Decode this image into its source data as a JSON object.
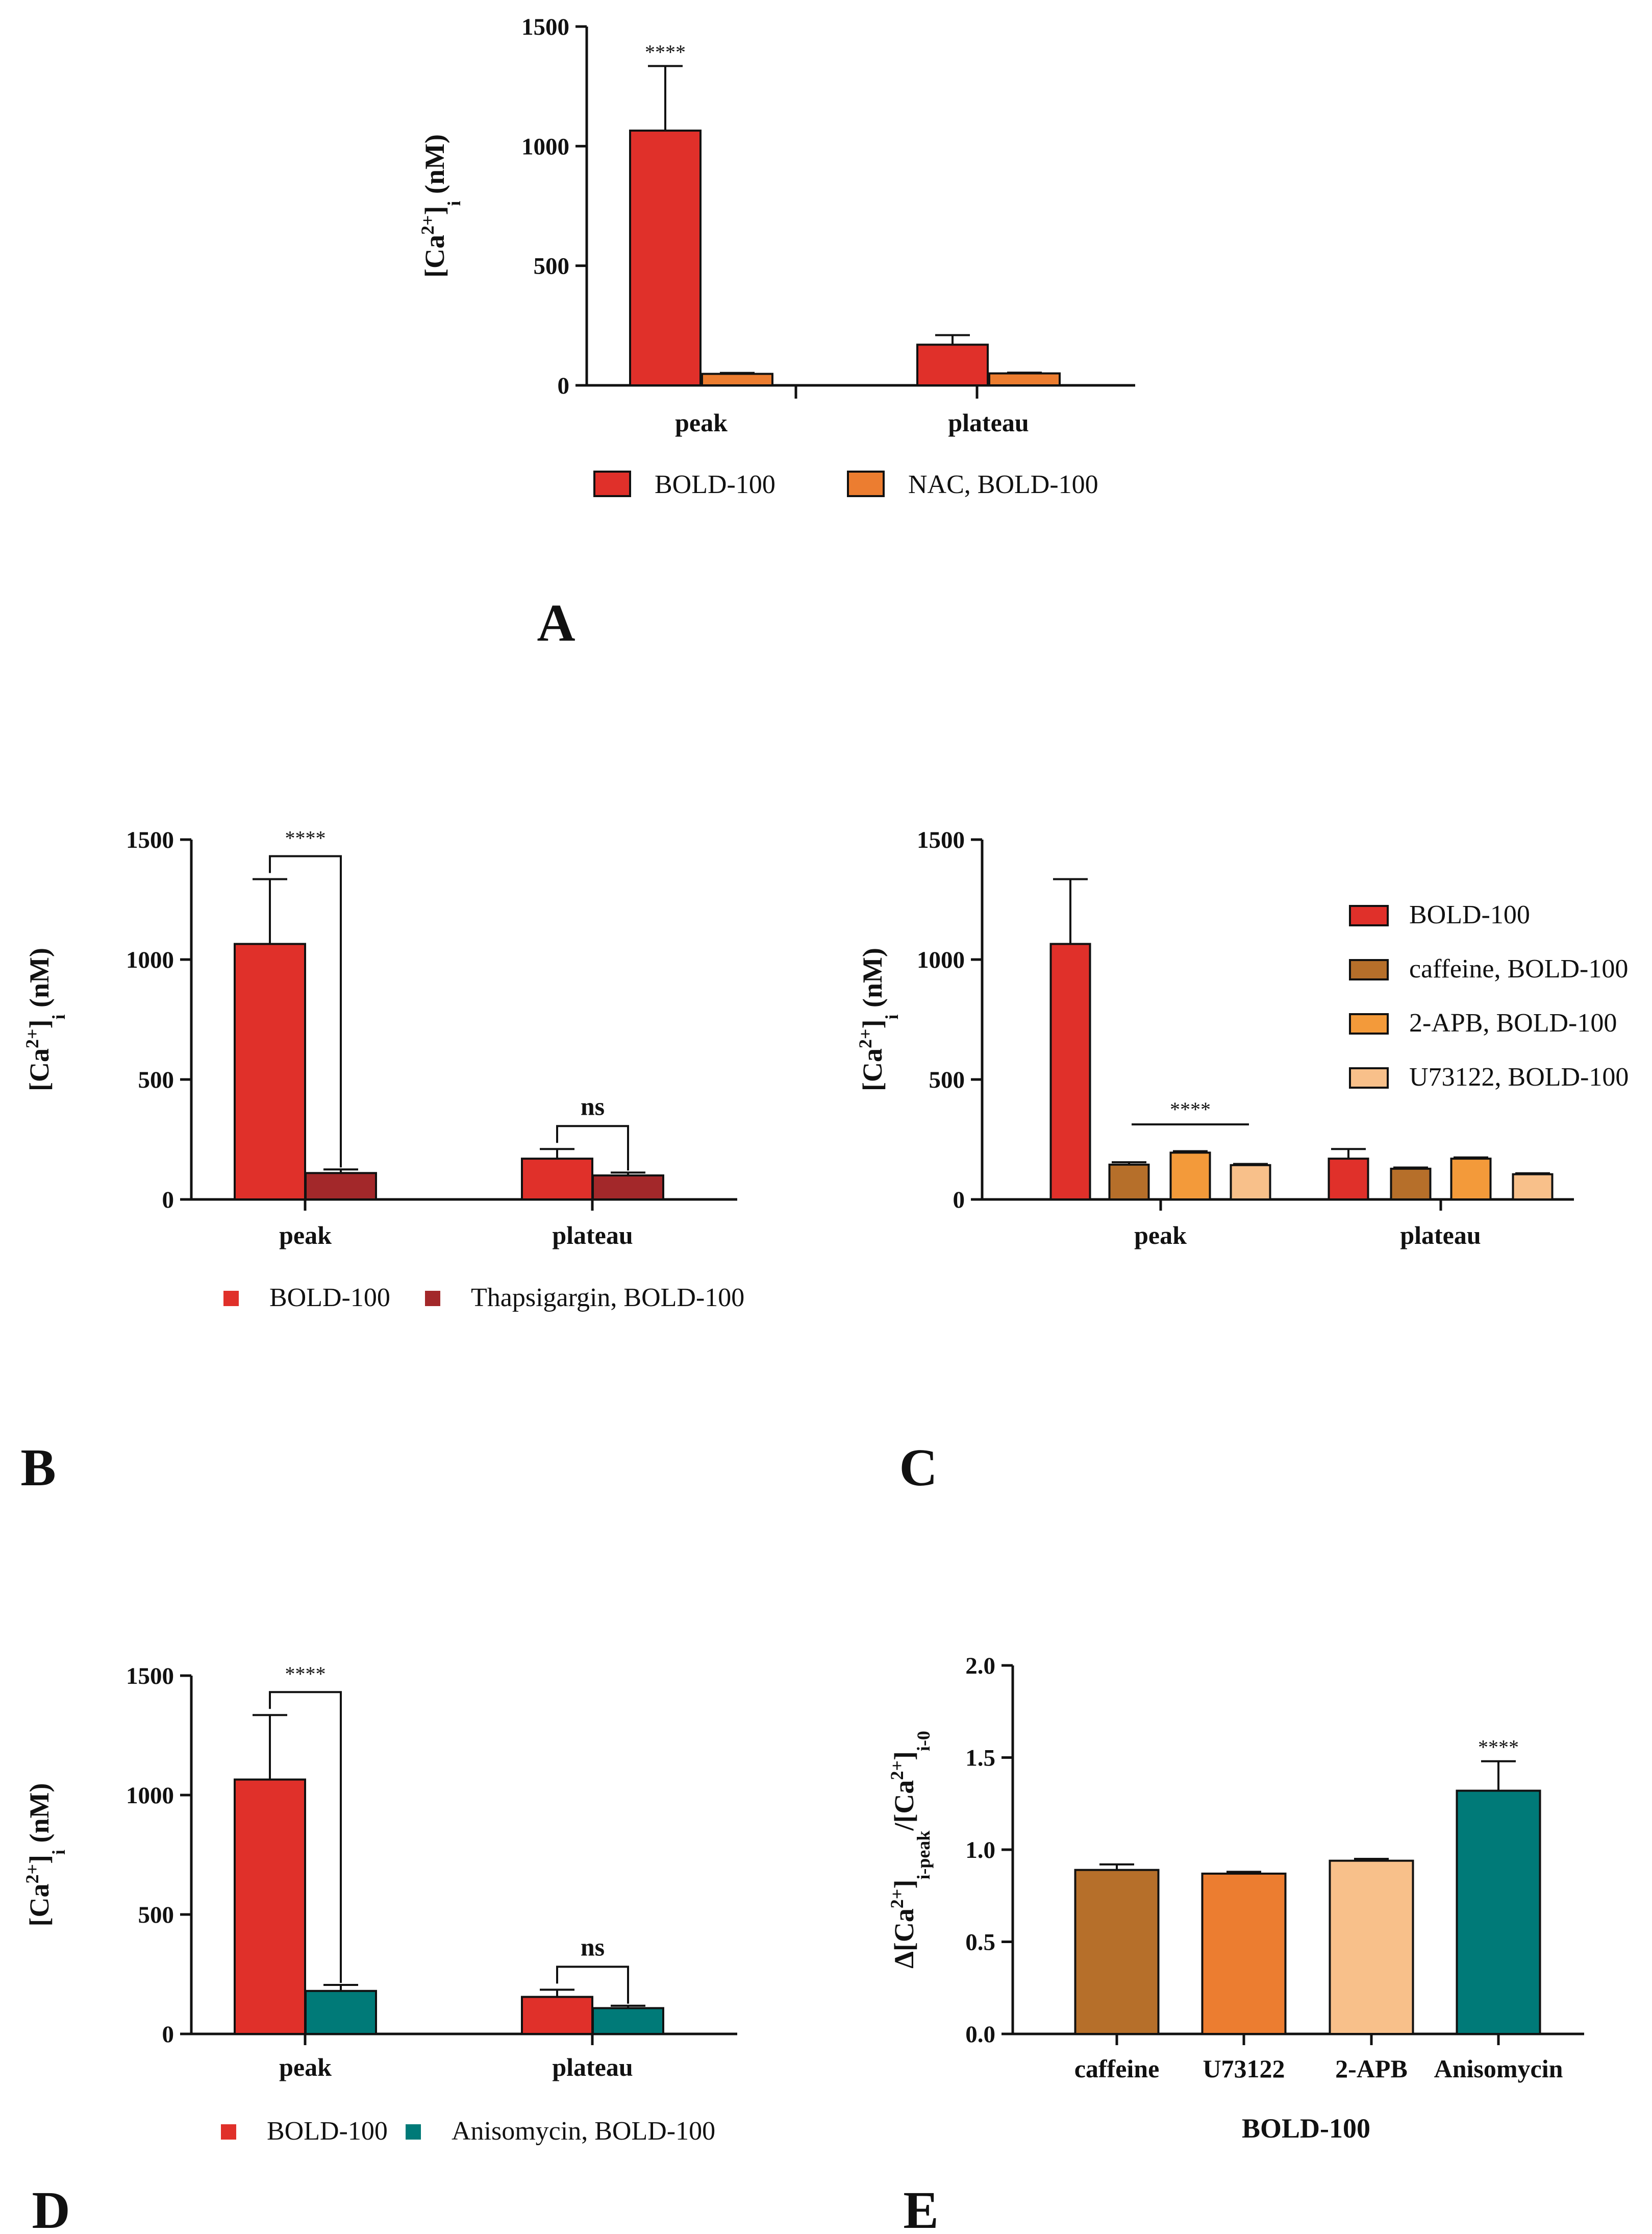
{
  "colors": {
    "bold100": "#e0302a",
    "nac": "#ec7d30",
    "thapsigargin": "#a3282a",
    "caffeine": "#b66f2a",
    "apb2": "#f39a3a",
    "u73122": "#f8c08a",
    "anisomycin": "#007a78",
    "axis": "#111111"
  },
  "chart_data": [
    {
      "panel": "A",
      "type": "bar",
      "ylabel": "[Ca2+]i (nM)",
      "ylabel_parts": [
        "[Ca",
        "2+",
        "]",
        "i",
        " (nM)"
      ],
      "yticks": [
        "0",
        "500",
        "1000",
        "1500"
      ],
      "ylim": [
        0,
        1500
      ],
      "categories": [
        "peak",
        "plateau"
      ],
      "series": [
        {
          "name": "BOLD-100",
          "color_key": "bold100",
          "values": [
            1065,
            170
          ],
          "errors": [
            270,
            40
          ]
        },
        {
          "name": "NAC, BOLD-100",
          "color_key": "nac",
          "values": [
            48,
            50
          ],
          "errors": [
            4,
            3
          ]
        }
      ],
      "annotations": [
        {
          "text": "****",
          "kind": "over-bar",
          "category": 0,
          "series": 0
        }
      ],
      "legend": "bottom"
    },
    {
      "panel": "B",
      "type": "bar",
      "ylabel": "[Ca2+]i (nM)",
      "ylabel_parts": [
        "[Ca",
        "2+",
        "]",
        "i",
        " (nM)"
      ],
      "yticks": [
        "0",
        "500",
        "1000",
        "1500"
      ],
      "ylim": [
        0,
        1500
      ],
      "categories": [
        "peak",
        "plateau"
      ],
      "series": [
        {
          "name": "BOLD-100",
          "color_key": "bold100",
          "values": [
            1065,
            170
          ],
          "errors": [
            270,
            40
          ]
        },
        {
          "name": "Thapsigargin, BOLD-100",
          "color_key": "thapsigargin",
          "values": [
            110,
            100
          ],
          "errors": [
            15,
            12
          ]
        }
      ],
      "annotations": [
        {
          "text": "****",
          "kind": "bracket",
          "category": 0
        },
        {
          "text": "ns",
          "kind": "bracket",
          "category": 1
        }
      ],
      "legend": "bottom"
    },
    {
      "panel": "C",
      "type": "bar",
      "ylabel": "[Ca2+]i (nM)",
      "ylabel_parts": [
        "[Ca",
        "2+",
        "]",
        "i",
        " (nM)"
      ],
      "yticks": [
        "0",
        "500",
        "1000",
        "1500"
      ],
      "ylim": [
        0,
        1500
      ],
      "categories": [
        "peak",
        "plateau"
      ],
      "series": [
        {
          "name": "BOLD-100",
          "color_key": "bold100",
          "values": [
            1065,
            170
          ],
          "errors": [
            270,
            40
          ]
        },
        {
          "name": "caffeine, BOLD-100",
          "color_key": "caffeine",
          "values": [
            145,
            128
          ],
          "errors": [
            10,
            5
          ]
        },
        {
          "name": "2-APB, BOLD-100",
          "color_key": "apb2",
          "values": [
            195,
            170
          ],
          "errors": [
            6,
            5
          ]
        },
        {
          "name": "U73122, BOLD-100",
          "color_key": "u73122",
          "values": [
            143,
            105
          ],
          "errors": [
            5,
            4
          ]
        }
      ],
      "annotations": [
        {
          "text": "****",
          "kind": "line",
          "category": 0
        }
      ],
      "legend": "top-right"
    },
    {
      "panel": "D",
      "type": "bar",
      "ylabel": "[Ca2+]i (nM)",
      "ylabel_parts": [
        "[Ca",
        "2+",
        "]",
        "i",
        " (nM)"
      ],
      "yticks": [
        "0",
        "500",
        "1000",
        "1500"
      ],
      "ylim": [
        0,
        1500
      ],
      "categories": [
        "peak",
        "plateau"
      ],
      "series": [
        {
          "name": "BOLD-100",
          "color_key": "bold100",
          "values": [
            1065,
            155
          ],
          "errors": [
            270,
            30
          ]
        },
        {
          "name": "Anisomycin, BOLD-100",
          "color_key": "anisomycin",
          "values": [
            180,
            108
          ],
          "errors": [
            25,
            10
          ]
        }
      ],
      "annotations": [
        {
          "text": "****",
          "kind": "bracket",
          "category": 0
        },
        {
          "text": "ns",
          "kind": "bracket",
          "category": 1
        }
      ],
      "legend": "bottom"
    },
    {
      "panel": "E",
      "type": "bar",
      "ylabel": "Δ[Ca2+]i-peak/[Ca2+]i-0",
      "ylabel_parts": [
        "Δ[Ca",
        "2+",
        "]",
        "i-peak",
        "/[Ca",
        "2+",
        "]",
        "i-0"
      ],
      "xlabel": "BOLD-100",
      "yticks": [
        "0.0",
        "0.5",
        "1.0",
        "1.5",
        "2.0"
      ],
      "ylim": [
        0,
        2.0
      ],
      "categories": [
        "caffeine",
        "U73122",
        "2-APB",
        "Anisomycin"
      ],
      "values": [
        0.89,
        0.87,
        0.94,
        1.32
      ],
      "errors": [
        0.03,
        0.01,
        0.01,
        0.16
      ],
      "bar_colors": [
        "caffeine",
        "nac",
        "u73122",
        "anisomycin"
      ],
      "annotations": [
        {
          "text": "****",
          "kind": "over-bar",
          "category": 3
        }
      ]
    }
  ],
  "panel_letters": [
    "A",
    "B",
    "C",
    "D",
    "E"
  ]
}
